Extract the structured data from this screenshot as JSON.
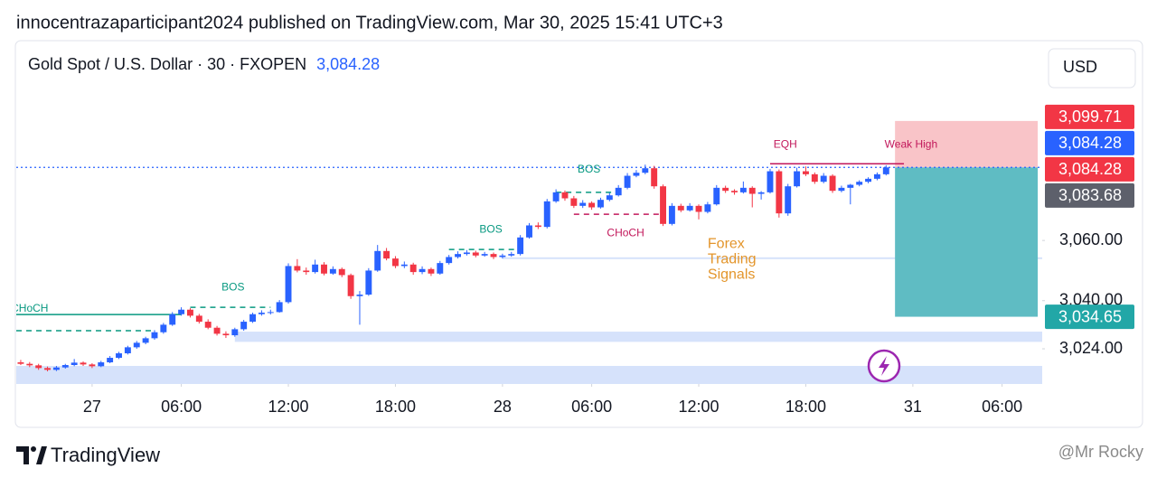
{
  "header": {
    "publisher": "innocentrazaparticipant2024 published on TradingView.com, Mar 30, 2025 15:41 UTC+3"
  },
  "footer": {
    "brand": "TradingView",
    "watermark": "@Mr Rocky"
  },
  "chart_data": {
    "type": "candlestick",
    "symbol": "Gold Spot / U.S. Dollar · 30 · FXOPEN",
    "currency": "USD",
    "last_price": {
      "value": 3084.28,
      "label": "3,084.28",
      "color": "#2962ff"
    },
    "up_color": "#2962ff",
    "down_color": "#f23645",
    "ylim": [
      3012.3,
      3126.4
    ],
    "yticks": [
      {
        "value": 3060,
        "label": "3,060.00"
      },
      {
        "value": 3040,
        "label": "3,040.00"
      },
      {
        "value": 3024,
        "label": "3,024.00"
      }
    ],
    "xlim": [
      -0.5,
      114.5
    ],
    "xticks": [
      {
        "value": 8,
        "label": "27"
      },
      {
        "value": 18,
        "label": "06:00"
      },
      {
        "value": 30,
        "label": "12:00"
      },
      {
        "value": 42,
        "label": "18:00"
      },
      {
        "value": 54,
        "label": "28"
      },
      {
        "value": 64,
        "label": "06:00"
      },
      {
        "value": 76,
        "label": "12:00"
      },
      {
        "value": 88,
        "label": "18:00"
      },
      {
        "value": 100,
        "label": "31"
      },
      {
        "value": 110,
        "label": "06:00"
      }
    ],
    "price_labels": [
      {
        "value": 3099.71,
        "label": "3,099.71",
        "color": "#f23645"
      },
      {
        "value": 3084.28,
        "label": "3,084.28",
        "color": "#2962ff"
      },
      {
        "value": 3084.28,
        "label": "3,084.28",
        "color": "#f23645"
      },
      {
        "value": 3083.68,
        "label": "3,083.68",
        "color": "#5d606b"
      },
      {
        "value": 3034.65,
        "label": "3,034.65",
        "color": "#22a7a7"
      }
    ],
    "position": {
      "entry": 3084.28,
      "stop": 3099.71,
      "target": 3034.65,
      "x0": 98,
      "x1": 114,
      "stop_color": "#f9c4c8",
      "target_color": "#5fbcc3"
    },
    "zones": [
      {
        "low": 3026.3,
        "high": 3029.7,
        "x0": 24,
        "x1": 114.5,
        "color": "#d6e2fb"
      },
      {
        "low": 3012.3,
        "high": 3018.3,
        "x0": -0.5,
        "x1": 114.5,
        "color": "#d6e2fb"
      },
      {
        "low": 3053.8,
        "high": 3054.4,
        "x0": 54,
        "x1": 114.5,
        "color": "#d6e2fb"
      }
    ],
    "lines": [
      {
        "price": 3035.4,
        "x0": -0.5,
        "x1": 18,
        "color": "#089981",
        "dashed": false
      },
      {
        "price": 3030.0,
        "x0": -0.5,
        "x1": 15,
        "color": "#089981",
        "dashed": true
      },
      {
        "price": 3037.8,
        "x0": 19,
        "x1": 28,
        "color": "#089981",
        "dashed": true
      },
      {
        "price": 3057.0,
        "x0": 48,
        "x1": 56,
        "color": "#089981",
        "dashed": true
      },
      {
        "price": 3076.0,
        "x0": 60,
        "x1": 67,
        "color": "#089981",
        "dashed": true
      },
      {
        "price": 3068.7,
        "x0": 62,
        "x1": 72,
        "color": "#c2185b",
        "dashed": true
      },
      {
        "price": 3085.5,
        "x0": 84,
        "x1": 99,
        "color": "#c2185b",
        "dashed": false
      }
    ],
    "annotations": [
      {
        "text": "CHoCH",
        "x": 1,
        "price": 3037.3,
        "color": "#089981"
      },
      {
        "text": "BOS",
        "x": 23.8,
        "price": 3044.3,
        "color": "#089981"
      },
      {
        "text": "BOS",
        "x": 52.7,
        "price": 3063.6,
        "color": "#089981"
      },
      {
        "text": "BOS",
        "x": 63.7,
        "price": 3083.5,
        "color": "#089981"
      },
      {
        "text": "CHoCH",
        "x": 67.8,
        "price": 3062.4,
        "color": "#c2185b"
      },
      {
        "text": "EQH",
        "x": 85.7,
        "price": 3091.8,
        "color": "#c2185b"
      },
      {
        "text": "Weak High",
        "x": 99.8,
        "price": 3091.8,
        "color": "#c2185b"
      }
    ],
    "signal_text": {
      "lines": [
        "Forex",
        "Trading",
        "Signals"
      ],
      "x": 77,
      "price": 3058.8,
      "color": "#e3952b"
    },
    "ohlc": [
      [
        3019.5,
        3020.3,
        3018.6,
        3019.0
      ],
      [
        3019.0,
        3019.6,
        3017.9,
        3018.5
      ],
      [
        3018.5,
        3019.0,
        3017.0,
        3017.6
      ],
      [
        3017.6,
        3018.1,
        3016.5,
        3017.0
      ],
      [
        3017.0,
        3018.3,
        3016.6,
        3017.8
      ],
      [
        3017.8,
        3019.0,
        3017.4,
        3018.6
      ],
      [
        3018.6,
        3020.6,
        3018.2,
        3019.4
      ],
      [
        3019.4,
        3019.8,
        3018.3,
        3018.8
      ],
      [
        3018.8,
        3019.2,
        3017.6,
        3018.2
      ],
      [
        3018.2,
        3020.0,
        3017.9,
        3019.5
      ],
      [
        3019.5,
        3021.6,
        3019.2,
        3021.0
      ],
      [
        3021.0,
        3023.0,
        3020.6,
        3022.5
      ],
      [
        3022.5,
        3025.0,
        3022.1,
        3024.5
      ],
      [
        3024.5,
        3026.6,
        3024.0,
        3026.0
      ],
      [
        3026.0,
        3028.0,
        3025.5,
        3027.5
      ],
      [
        3027.5,
        3030.2,
        3027.0,
        3029.5
      ],
      [
        3029.5,
        3032.6,
        3029.0,
        3032.0
      ],
      [
        3032.0,
        3036.2,
        3031.6,
        3035.5
      ],
      [
        3035.5,
        3037.8,
        3035.0,
        3037.0
      ],
      [
        3037.0,
        3037.5,
        3034.4,
        3035.0
      ],
      [
        3035.0,
        3035.6,
        3032.4,
        3033.0
      ],
      [
        3033.0,
        3033.8,
        3030.5,
        3031.0
      ],
      [
        3031.0,
        3031.6,
        3028.4,
        3029.0
      ],
      [
        3029.0,
        3029.8,
        3027.6,
        3028.5
      ],
      [
        3028.5,
        3031.0,
        3028.0,
        3030.5
      ],
      [
        3030.5,
        3033.6,
        3030.0,
        3033.0
      ],
      [
        3033.0,
        3036.0,
        3032.6,
        3035.5
      ],
      [
        3035.5,
        3036.8,
        3035.0,
        3036.0
      ],
      [
        3036.0,
        3037.0,
        3035.4,
        3036.2
      ],
      [
        3036.2,
        3040.2,
        3036.0,
        3039.5
      ],
      [
        3039.5,
        3052.4,
        3039.0,
        3051.5
      ],
      [
        3051.5,
        3053.8,
        3049.4,
        3050.0
      ],
      [
        3050.0,
        3051.0,
        3048.6,
        3049.5
      ],
      [
        3049.5,
        3053.6,
        3049.0,
        3052.0
      ],
      [
        3052.0,
        3052.8,
        3048.4,
        3049.0
      ],
      [
        3049.0,
        3051.4,
        3048.6,
        3050.5
      ],
      [
        3050.5,
        3051.0,
        3047.8,
        3048.5
      ],
      [
        3048.5,
        3049.0,
        3040.6,
        3041.5
      ],
      [
        3041.5,
        3043.2,
        3032.0,
        3042.0
      ],
      [
        3042.0,
        3050.8,
        3041.6,
        3050.0
      ],
      [
        3050.0,
        3058.5,
        3049.6,
        3056.5
      ],
      [
        3056.5,
        3057.5,
        3053.4,
        3054.0
      ],
      [
        3054.0,
        3054.8,
        3050.8,
        3051.5
      ],
      [
        3051.5,
        3053.0,
        3050.8,
        3052.0
      ],
      [
        3052.0,
        3052.6,
        3048.6,
        3049.5
      ],
      [
        3049.5,
        3051.4,
        3048.8,
        3050.5
      ],
      [
        3050.5,
        3051.0,
        3048.2,
        3049.0
      ],
      [
        3049.0,
        3053.2,
        3048.6,
        3052.5
      ],
      [
        3052.5,
        3055.2,
        3052.0,
        3054.5
      ],
      [
        3054.5,
        3056.4,
        3054.0,
        3055.5
      ],
      [
        3055.5,
        3056.8,
        3055.0,
        3056.0
      ],
      [
        3056.0,
        3056.6,
        3054.4,
        3055.0
      ],
      [
        3055.0,
        3056.2,
        3054.6,
        3055.5
      ],
      [
        3055.5,
        3056.0,
        3053.8,
        3054.5
      ],
      [
        3054.5,
        3055.6,
        3054.0,
        3055.0
      ],
      [
        3055.0,
        3056.2,
        3054.6,
        3055.5
      ],
      [
        3055.5,
        3061.8,
        3055.0,
        3061.0
      ],
      [
        3061.0,
        3065.8,
        3060.6,
        3065.0
      ],
      [
        3065.0,
        3066.0,
        3063.8,
        3064.5
      ],
      [
        3064.5,
        3073.8,
        3064.0,
        3073.0
      ],
      [
        3073.0,
        3077.0,
        3072.5,
        3076.0
      ],
      [
        3076.0,
        3076.6,
        3073.2,
        3074.0
      ],
      [
        3074.0,
        3074.8,
        3070.8,
        3071.5
      ],
      [
        3071.5,
        3073.4,
        3070.8,
        3072.5
      ],
      [
        3072.5,
        3073.0,
        3070.2,
        3071.0
      ],
      [
        3071.0,
        3074.2,
        3070.6,
        3073.5
      ],
      [
        3073.5,
        3075.8,
        3073.0,
        3075.0
      ],
      [
        3075.0,
        3078.4,
        3074.6,
        3077.5
      ],
      [
        3077.5,
        3082.4,
        3077.0,
        3081.5
      ],
      [
        3081.5,
        3083.4,
        3081.0,
        3082.5
      ],
      [
        3082.5,
        3085.2,
        3082.0,
        3084.0
      ],
      [
        3084.0,
        3084.8,
        3077.2,
        3078.0
      ],
      [
        3078.0,
        3078.6,
        3064.8,
        3065.5
      ],
      [
        3065.5,
        3072.4,
        3065.0,
        3071.5
      ],
      [
        3071.5,
        3072.2,
        3069.4,
        3070.0
      ],
      [
        3070.0,
        3072.4,
        3069.6,
        3071.5
      ],
      [
        3071.5,
        3072.0,
        3067.0,
        3069.5
      ],
      [
        3069.5,
        3072.8,
        3069.0,
        3072.0
      ],
      [
        3072.0,
        3078.4,
        3071.6,
        3077.5
      ],
      [
        3077.5,
        3078.2,
        3075.8,
        3076.5
      ],
      [
        3076.5,
        3077.0,
        3075.2,
        3076.0
      ],
      [
        3076.0,
        3079.6,
        3075.6,
        3077.5
      ],
      [
        3077.5,
        3078.0,
        3071.0,
        3075.5
      ],
      [
        3075.5,
        3076.4,
        3073.6,
        3076.0
      ],
      [
        3076.0,
        3083.8,
        3075.6,
        3083.0
      ],
      [
        3083.0,
        3083.6,
        3067.6,
        3069.0
      ],
      [
        3069.0,
        3078.8,
        3068.2,
        3078.0
      ],
      [
        3078.0,
        3084.2,
        3077.6,
        3083.0
      ],
      [
        3083.0,
        3084.6,
        3081.4,
        3082.0
      ],
      [
        3082.0,
        3082.6,
        3078.8,
        3079.5
      ],
      [
        3079.5,
        3082.4,
        3079.0,
        3081.5
      ],
      [
        3081.5,
        3082.0,
        3075.8,
        3076.5
      ],
      [
        3076.5,
        3078.2,
        3076.0,
        3077.5
      ],
      [
        3077.5,
        3078.8,
        3072.0,
        3078.5
      ],
      [
        3078.5,
        3080.0,
        3078.0,
        3079.5
      ],
      [
        3079.5,
        3081.0,
        3079.0,
        3080.5
      ],
      [
        3080.5,
        3082.6,
        3080.0,
        3082.0
      ],
      [
        3082.0,
        3085.0,
        3081.6,
        3084.28
      ]
    ]
  }
}
